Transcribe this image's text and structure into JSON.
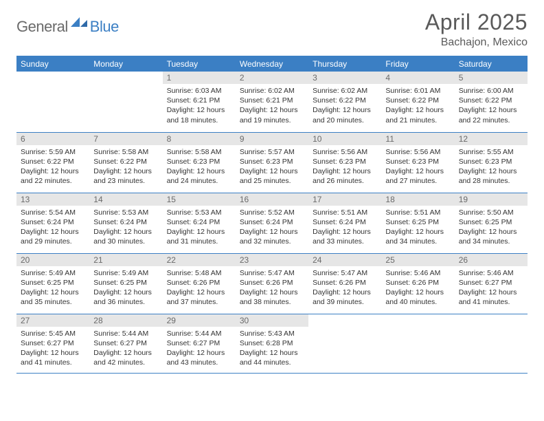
{
  "colors": {
    "header_bg": "#3b7fc4",
    "header_text": "#ffffff",
    "daynum_bg": "#e6e6e6",
    "daynum_text": "#6a6a6a",
    "body_text": "#333333",
    "rule": "#3b7fc4",
    "logo_gray": "#6a6a6a",
    "logo_blue": "#3b7fc4",
    "title_color": "#5a5a5a"
  },
  "logo": {
    "part1": "General",
    "part2": "Blue"
  },
  "title": "April 2025",
  "location": "Bachajon, Mexico",
  "weekdays": [
    "Sunday",
    "Monday",
    "Tuesday",
    "Wednesday",
    "Thursday",
    "Friday",
    "Saturday"
  ],
  "weeks": [
    [
      null,
      null,
      {
        "n": "1",
        "sr": "6:03 AM",
        "ss": "6:21 PM",
        "dl": "12 hours and 18 minutes."
      },
      {
        "n": "2",
        "sr": "6:02 AM",
        "ss": "6:21 PM",
        "dl": "12 hours and 19 minutes."
      },
      {
        "n": "3",
        "sr": "6:02 AM",
        "ss": "6:22 PM",
        "dl": "12 hours and 20 minutes."
      },
      {
        "n": "4",
        "sr": "6:01 AM",
        "ss": "6:22 PM",
        "dl": "12 hours and 21 minutes."
      },
      {
        "n": "5",
        "sr": "6:00 AM",
        "ss": "6:22 PM",
        "dl": "12 hours and 22 minutes."
      }
    ],
    [
      {
        "n": "6",
        "sr": "5:59 AM",
        "ss": "6:22 PM",
        "dl": "12 hours and 22 minutes."
      },
      {
        "n": "7",
        "sr": "5:58 AM",
        "ss": "6:22 PM",
        "dl": "12 hours and 23 minutes."
      },
      {
        "n": "8",
        "sr": "5:58 AM",
        "ss": "6:23 PM",
        "dl": "12 hours and 24 minutes."
      },
      {
        "n": "9",
        "sr": "5:57 AM",
        "ss": "6:23 PM",
        "dl": "12 hours and 25 minutes."
      },
      {
        "n": "10",
        "sr": "5:56 AM",
        "ss": "6:23 PM",
        "dl": "12 hours and 26 minutes."
      },
      {
        "n": "11",
        "sr": "5:56 AM",
        "ss": "6:23 PM",
        "dl": "12 hours and 27 minutes."
      },
      {
        "n": "12",
        "sr": "5:55 AM",
        "ss": "6:23 PM",
        "dl": "12 hours and 28 minutes."
      }
    ],
    [
      {
        "n": "13",
        "sr": "5:54 AM",
        "ss": "6:24 PM",
        "dl": "12 hours and 29 minutes."
      },
      {
        "n": "14",
        "sr": "5:53 AM",
        "ss": "6:24 PM",
        "dl": "12 hours and 30 minutes."
      },
      {
        "n": "15",
        "sr": "5:53 AM",
        "ss": "6:24 PM",
        "dl": "12 hours and 31 minutes."
      },
      {
        "n": "16",
        "sr": "5:52 AM",
        "ss": "6:24 PM",
        "dl": "12 hours and 32 minutes."
      },
      {
        "n": "17",
        "sr": "5:51 AM",
        "ss": "6:24 PM",
        "dl": "12 hours and 33 minutes."
      },
      {
        "n": "18",
        "sr": "5:51 AM",
        "ss": "6:25 PM",
        "dl": "12 hours and 34 minutes."
      },
      {
        "n": "19",
        "sr": "5:50 AM",
        "ss": "6:25 PM",
        "dl": "12 hours and 34 minutes."
      }
    ],
    [
      {
        "n": "20",
        "sr": "5:49 AM",
        "ss": "6:25 PM",
        "dl": "12 hours and 35 minutes."
      },
      {
        "n": "21",
        "sr": "5:49 AM",
        "ss": "6:25 PM",
        "dl": "12 hours and 36 minutes."
      },
      {
        "n": "22",
        "sr": "5:48 AM",
        "ss": "6:26 PM",
        "dl": "12 hours and 37 minutes."
      },
      {
        "n": "23",
        "sr": "5:47 AM",
        "ss": "6:26 PM",
        "dl": "12 hours and 38 minutes."
      },
      {
        "n": "24",
        "sr": "5:47 AM",
        "ss": "6:26 PM",
        "dl": "12 hours and 39 minutes."
      },
      {
        "n": "25",
        "sr": "5:46 AM",
        "ss": "6:26 PM",
        "dl": "12 hours and 40 minutes."
      },
      {
        "n": "26",
        "sr": "5:46 AM",
        "ss": "6:27 PM",
        "dl": "12 hours and 41 minutes."
      }
    ],
    [
      {
        "n": "27",
        "sr": "5:45 AM",
        "ss": "6:27 PM",
        "dl": "12 hours and 41 minutes."
      },
      {
        "n": "28",
        "sr": "5:44 AM",
        "ss": "6:27 PM",
        "dl": "12 hours and 42 minutes."
      },
      {
        "n": "29",
        "sr": "5:44 AM",
        "ss": "6:27 PM",
        "dl": "12 hours and 43 minutes."
      },
      {
        "n": "30",
        "sr": "5:43 AM",
        "ss": "6:28 PM",
        "dl": "12 hours and 44 minutes."
      },
      null,
      null,
      null
    ]
  ],
  "labels": {
    "sunrise": "Sunrise: ",
    "sunset": "Sunset: ",
    "daylight": "Daylight: "
  }
}
